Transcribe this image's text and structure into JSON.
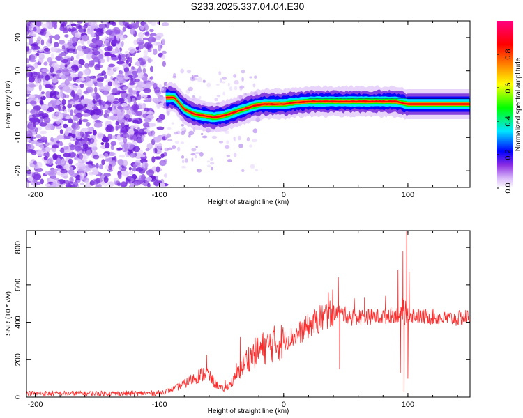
{
  "figure_title": "S233.2025.337.04.04.E30",
  "chart_data": [
    {
      "type": "heatmap",
      "title": "S233.2025.337.04.04.E30",
      "xlabel": "Height of straight line (km)",
      "ylabel": "Frequency (Hz)",
      "xlim": [
        -207,
        150
      ],
      "ylim": [
        -25,
        25
      ],
      "x_ticks": [
        -200,
        -100,
        0,
        100
      ],
      "x_tick_labels": [
        "-200",
        "-100",
        "0",
        "100"
      ],
      "y_ticks": [
        -20,
        -10,
        0,
        10,
        20
      ],
      "y_tick_labels": [
        "-20",
        "-10",
        "0",
        "10",
        "20"
      ],
      "colorbar": {
        "label": "Normalized spectral amplitude",
        "range": [
          0,
          1
        ],
        "ticks": [
          0.0,
          0.2,
          0.4,
          0.6,
          0.8
        ],
        "tick_labels": [
          "0.0",
          "0.2",
          "0.4",
          "0.6",
          "0.8"
        ],
        "colormap": [
          "#ffffff",
          "#d8b8f8",
          "#8a2be2",
          "#0000ff",
          "#00e5ff",
          "#00ff00",
          "#ffff00",
          "#ff8000",
          "#ff0000",
          "#ff0080"
        ]
      },
      "noise_region": {
        "x_range": [
          -207,
          -95
        ],
        "y_range": [
          -25,
          25
        ]
      },
      "ridge_profile": {
        "x": [
          -95,
          -88,
          -80,
          -72,
          -64,
          -56,
          -48,
          -40,
          -32,
          -24,
          -16,
          -8,
          0,
          10,
          20,
          30,
          40,
          50,
          60,
          70,
          80,
          90,
          100,
          150
        ],
        "freq": [
          2,
          2,
          -1.5,
          -3,
          -3.5,
          -4,
          -3.5,
          -2.5,
          -1.5,
          -0.5,
          0,
          0,
          0,
          0.5,
          0.8,
          0.8,
          0.8,
          0.8,
          0.8,
          0.8,
          0.8,
          0.8,
          0,
          0
        ]
      }
    },
    {
      "type": "line",
      "title": "",
      "xlabel": "Height of straight line (km)",
      "ylabel": "SNR (10 * v/v)",
      "xlim": [
        -207,
        150
      ],
      "ylim": [
        0,
        890
      ],
      "x_ticks": [
        -200,
        -100,
        0,
        100
      ],
      "x_tick_labels": [
        "-200",
        "-100",
        "0",
        "100"
      ],
      "y_ticks": [
        0,
        200,
        400,
        600,
        800
      ],
      "y_tick_labels": [
        "0",
        "200",
        "400",
        "600",
        "800"
      ],
      "series": [
        {
          "name": "SNR",
          "color": "#ff2a2a",
          "x": [
            -207,
            -180,
            -150,
            -120,
            -100,
            -90,
            -80,
            -70,
            -62,
            -55,
            -48,
            -40,
            -30,
            -20,
            -10,
            0,
            10,
            20,
            25,
            30,
            35,
            40,
            45,
            50,
            55,
            60,
            70,
            80,
            85,
            90,
            95,
            97,
            99,
            100,
            105,
            110,
            120,
            130,
            140,
            150
          ],
          "y": [
            20,
            20,
            20,
            20,
            22,
            40,
            70,
            110,
            130,
            70,
            40,
            90,
            200,
            250,
            280,
            300,
            330,
            380,
            400,
            420,
            440,
            450,
            450,
            440,
            430,
            430,
            430,
            430,
            440,
            440,
            440,
            400,
            440,
            440,
            440,
            430,
            430,
            420,
            420,
            430
          ],
          "spikes": [
            {
              "x": -62,
              "y": 225
            },
            {
              "x": -47,
              "y": 90
            },
            {
              "x": -38,
              "y": 180
            },
            {
              "x": -35,
              "y": 320
            },
            {
              "x": 36,
              "y": 560
            },
            {
              "x": 44,
              "y": 640
            },
            {
              "x": 45,
              "y": 150
            },
            {
              "x": 65,
              "y": 530
            },
            {
              "x": 82,
              "y": 540
            },
            {
              "x": 92,
              "y": 680
            },
            {
              "x": 94,
              "y": 130
            },
            {
              "x": 96,
              "y": 780
            },
            {
              "x": 97,
              "y": 30
            },
            {
              "x": 99,
              "y": 885
            },
            {
              "x": 100,
              "y": 100
            },
            {
              "x": 101,
              "y": 670
            }
          ]
        }
      ]
    }
  ]
}
